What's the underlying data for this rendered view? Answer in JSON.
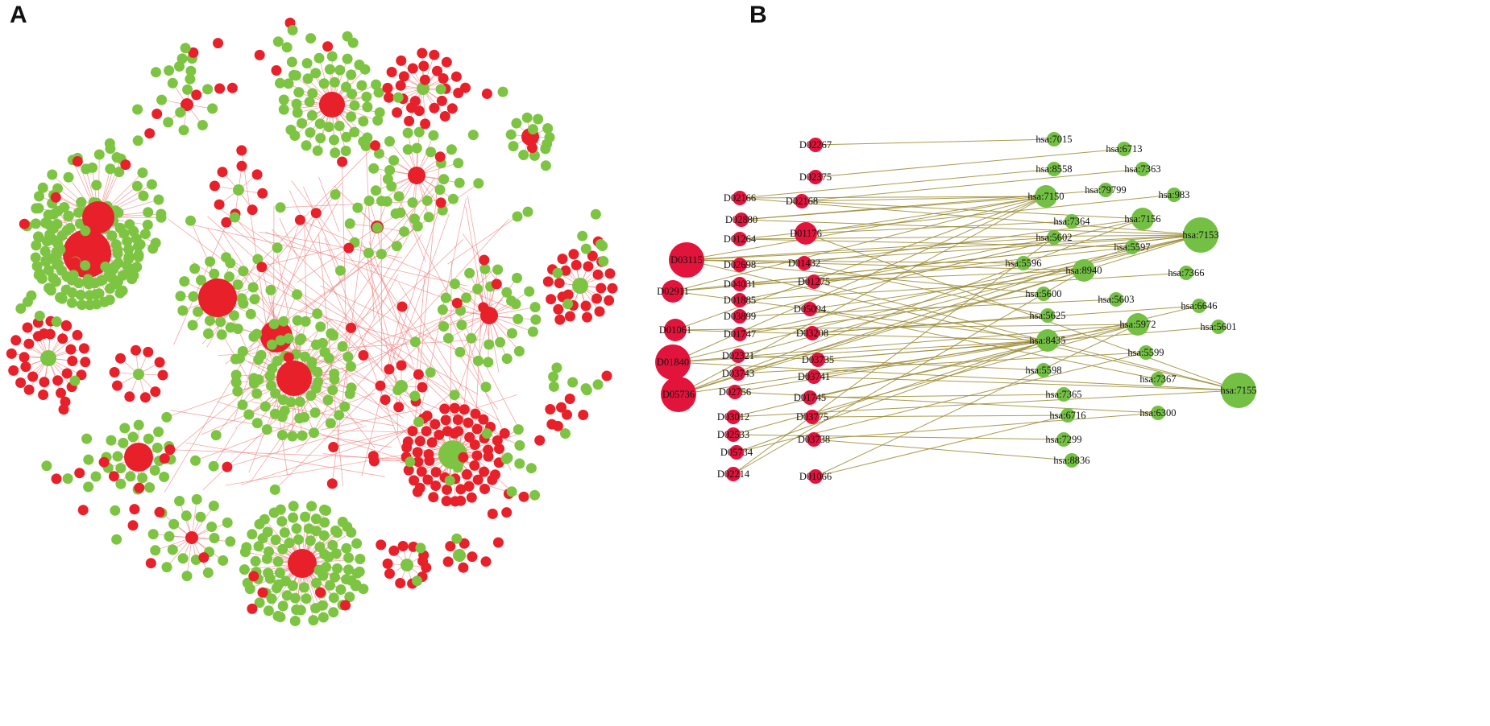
{
  "panels": {
    "a": {
      "letter": "A",
      "colors": {
        "drug": "#e8202a",
        "target": "#7cc442",
        "edge": "#f08080"
      }
    },
    "b": {
      "letter": "B",
      "colors": {
        "drug": "#e3143c",
        "target": "#74c044",
        "edge": "#9a8a30"
      },
      "drugs": [
        {
          "id": "D02267",
          "size": "s"
        },
        {
          "id": "D02375",
          "size": "s"
        },
        {
          "id": "D02166",
          "size": "s"
        },
        {
          "id": "D02168",
          "size": "s"
        },
        {
          "id": "D02880",
          "size": "s"
        },
        {
          "id": "D01264",
          "size": "s"
        },
        {
          "id": "D01176",
          "size": "m"
        },
        {
          "id": "D03115",
          "size": "l"
        },
        {
          "id": "D02698",
          "size": "s"
        },
        {
          "id": "D01432",
          "size": "s"
        },
        {
          "id": "D04031",
          "size": "s"
        },
        {
          "id": "D01275",
          "size": "s"
        },
        {
          "id": "D02911",
          "size": "m"
        },
        {
          "id": "D01885",
          "size": "s"
        },
        {
          "id": "D05094",
          "size": "s"
        },
        {
          "id": "D03899",
          "size": "s"
        },
        {
          "id": "D01061",
          "size": "m"
        },
        {
          "id": "D01747",
          "size": "s"
        },
        {
          "id": "D03208",
          "size": "s"
        },
        {
          "id": "D02321",
          "size": "s"
        },
        {
          "id": "D01840",
          "size": "l"
        },
        {
          "id": "D03735",
          "size": "s"
        },
        {
          "id": "D03743",
          "size": "s"
        },
        {
          "id": "D03741",
          "size": "s"
        },
        {
          "id": "D05736",
          "size": "l"
        },
        {
          "id": "D02756",
          "size": "s"
        },
        {
          "id": "D01745",
          "size": "s"
        },
        {
          "id": "D03012",
          "size": "s"
        },
        {
          "id": "D03775",
          "size": "s"
        },
        {
          "id": "D02533",
          "size": "s"
        },
        {
          "id": "D03738",
          "size": "s"
        },
        {
          "id": "D05734",
          "size": "s"
        },
        {
          "id": "D02214",
          "size": "s"
        },
        {
          "id": "D01066",
          "size": "s"
        }
      ],
      "targets": [
        {
          "id": "hsa:7015",
          "size": "s"
        },
        {
          "id": "hsa:6713",
          "size": "s"
        },
        {
          "id": "hsa:8558",
          "size": "s"
        },
        {
          "id": "hsa:7363",
          "size": "s"
        },
        {
          "id": "hsa:79799",
          "size": "s"
        },
        {
          "id": "hsa:983",
          "size": "s"
        },
        {
          "id": "hsa:7150",
          "size": "m"
        },
        {
          "id": "hsa:7364",
          "size": "s"
        },
        {
          "id": "hsa:7156",
          "size": "m"
        },
        {
          "id": "hsa:7153",
          "size": "l"
        },
        {
          "id": "hsa:5602",
          "size": "s"
        },
        {
          "id": "hsa:5597",
          "size": "s"
        },
        {
          "id": "hsa:5596",
          "size": "s"
        },
        {
          "id": "hsa:8940",
          "size": "m"
        },
        {
          "id": "hsa:7366",
          "size": "s"
        },
        {
          "id": "hsa:5600",
          "size": "s"
        },
        {
          "id": "hsa:5603",
          "size": "s"
        },
        {
          "id": "hsa:6646",
          "size": "s"
        },
        {
          "id": "hsa:5625",
          "size": "s"
        },
        {
          "id": "hsa:5972",
          "size": "m"
        },
        {
          "id": "hsa:5601",
          "size": "s"
        },
        {
          "id": "hsa:8435",
          "size": "m"
        },
        {
          "id": "hsa:5599",
          "size": "s"
        },
        {
          "id": "hsa:5598",
          "size": "s"
        },
        {
          "id": "hsa:7367",
          "size": "s"
        },
        {
          "id": "hsa:7155",
          "size": "l"
        },
        {
          "id": "hsa:7365",
          "size": "s"
        },
        {
          "id": "hsa:6716",
          "size": "s"
        },
        {
          "id": "hsa:6300",
          "size": "s"
        },
        {
          "id": "hsa:7299",
          "size": "s"
        },
        {
          "id": "hsa:8836",
          "size": "s"
        }
      ],
      "edges": [
        [
          "D02267",
          "hsa:7015"
        ],
        [
          "D02375",
          "hsa:6713"
        ],
        [
          "D02166",
          "hsa:7153"
        ],
        [
          "D02166",
          "hsa:7150"
        ],
        [
          "D02168",
          "hsa:7150"
        ],
        [
          "D02168",
          "hsa:7156"
        ],
        [
          "D02168",
          "hsa:7363"
        ],
        [
          "D02880",
          "hsa:7150"
        ],
        [
          "D02880",
          "hsa:7153"
        ],
        [
          "D01264",
          "hsa:7153"
        ],
        [
          "D01264",
          "hsa:5597"
        ],
        [
          "D01176",
          "hsa:7150"
        ],
        [
          "D01176",
          "hsa:7155"
        ],
        [
          "D01176",
          "hsa:7364"
        ],
        [
          "D03115",
          "hsa:7150"
        ],
        [
          "D03115",
          "hsa:7153"
        ],
        [
          "D03115",
          "hsa:5596"
        ],
        [
          "D03115",
          "hsa:8940"
        ],
        [
          "D03115",
          "hsa:5602"
        ],
        [
          "D03115",
          "hsa:7155"
        ],
        [
          "D02698",
          "hsa:7153"
        ],
        [
          "D02698",
          "hsa:5600"
        ],
        [
          "D01432",
          "hsa:7156"
        ],
        [
          "D01432",
          "hsa:5625"
        ],
        [
          "D04031",
          "hsa:8940"
        ],
        [
          "D04031",
          "hsa:7153"
        ],
        [
          "D01275",
          "hsa:5597"
        ],
        [
          "D01275",
          "hsa:7155"
        ],
        [
          "D02911",
          "hsa:7150"
        ],
        [
          "D02911",
          "hsa:8435"
        ],
        [
          "D02911",
          "hsa:5596"
        ],
        [
          "D02911",
          "hsa:7153"
        ],
        [
          "D01885",
          "hsa:5602"
        ],
        [
          "D01885",
          "hsa:7366"
        ],
        [
          "D05094",
          "hsa:8940"
        ],
        [
          "D05094",
          "hsa:7367"
        ],
        [
          "D03899",
          "hsa:7156"
        ],
        [
          "D03899",
          "hsa:5603"
        ],
        [
          "D01061",
          "hsa:7150"
        ],
        [
          "D01061",
          "hsa:5972"
        ],
        [
          "D01061",
          "hsa:8435"
        ],
        [
          "D01747",
          "hsa:5600"
        ],
        [
          "D01747",
          "hsa:7153"
        ],
        [
          "D03208",
          "hsa:5625"
        ],
        [
          "D03208",
          "hsa:6646"
        ],
        [
          "D02321",
          "hsa:7153"
        ],
        [
          "D02321",
          "hsa:5598"
        ],
        [
          "D01840",
          "hsa:7150"
        ],
        [
          "D01840",
          "hsa:7153"
        ],
        [
          "D01840",
          "hsa:8435"
        ],
        [
          "D01840",
          "hsa:5972"
        ],
        [
          "D01840",
          "hsa:7155"
        ],
        [
          "D03735",
          "hsa:8435"
        ],
        [
          "D03735",
          "hsa:5601"
        ],
        [
          "D03743",
          "hsa:8940"
        ],
        [
          "D03743",
          "hsa:5599"
        ],
        [
          "D03741",
          "hsa:5972"
        ],
        [
          "D03741",
          "hsa:7155"
        ],
        [
          "D05736",
          "hsa:7150"
        ],
        [
          "D05736",
          "hsa:7153"
        ],
        [
          "D05736",
          "hsa:8435"
        ],
        [
          "D05736",
          "hsa:5597"
        ],
        [
          "D05736",
          "hsa:7156"
        ],
        [
          "D02756",
          "hsa:8435"
        ],
        [
          "D02756",
          "hsa:6300"
        ],
        [
          "D01745",
          "hsa:5972"
        ],
        [
          "D01745",
          "hsa:7365"
        ],
        [
          "D03012",
          "hsa:6646"
        ],
        [
          "D03012",
          "hsa:7155"
        ],
        [
          "D03775",
          "hsa:8435"
        ],
        [
          "D03775",
          "hsa:6716"
        ],
        [
          "D02533",
          "hsa:5972"
        ],
        [
          "D02533",
          "hsa:7299"
        ],
        [
          "D03738",
          "hsa:6300"
        ],
        [
          "D03738",
          "hsa:8836"
        ],
        [
          "D05734",
          "hsa:8435"
        ],
        [
          "D05734",
          "hsa:5599"
        ],
        [
          "D02214",
          "hsa:5602"
        ],
        [
          "D02214",
          "hsa:8940"
        ],
        [
          "D01066",
          "hsa:5972"
        ],
        [
          "D01066",
          "hsa:6716"
        ],
        [
          "D02166",
          "hsa:8558"
        ],
        [
          "D02880",
          "hsa:79799"
        ],
        [
          "D01264",
          "hsa:983"
        ]
      ]
    }
  }
}
